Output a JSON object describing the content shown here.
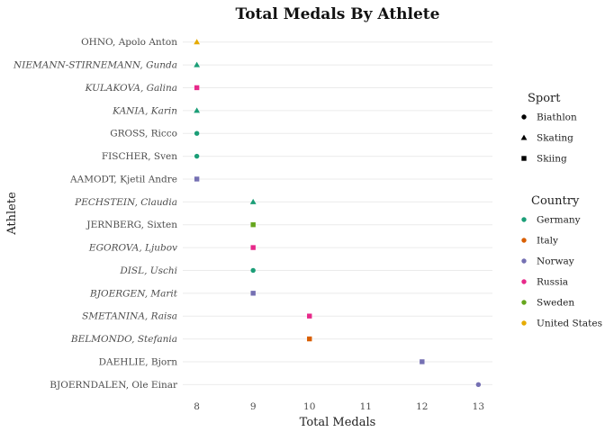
{
  "chart_data": {
    "type": "scatter",
    "title": "Total Medals By Athlete",
    "xlabel": "Total Medals",
    "ylabel": "Athlete",
    "xlim": [
      7.75,
      13.25
    ],
    "xticks": [
      8,
      9,
      10,
      11,
      12,
      13
    ],
    "grid": "horizontal",
    "legend_position": "right",
    "points": [
      {
        "athlete": "OHNO, Apolo Anton",
        "medals": 8,
        "sport": "Skating",
        "country": "United States",
        "italic": false
      },
      {
        "athlete": "NIEMANN-STIRNEMANN, Gunda",
        "medals": 8,
        "sport": "Skating",
        "country": "Germany",
        "italic": true
      },
      {
        "athlete": "KULAKOVA, Galina",
        "medals": 8,
        "sport": "Skiing",
        "country": "Russia",
        "italic": true
      },
      {
        "athlete": "KANIA, Karin",
        "medals": 8,
        "sport": "Skating",
        "country": "Germany",
        "italic": true
      },
      {
        "athlete": "GROSS, Ricco",
        "medals": 8,
        "sport": "Biathlon",
        "country": "Germany",
        "italic": false
      },
      {
        "athlete": "FISCHER, Sven",
        "medals": 8,
        "sport": "Biathlon",
        "country": "Germany",
        "italic": false
      },
      {
        "athlete": "AAMODT, Kjetil Andre",
        "medals": 8,
        "sport": "Skiing",
        "country": "Norway",
        "italic": false
      },
      {
        "athlete": "PECHSTEIN, Claudia",
        "medals": 9,
        "sport": "Skating",
        "country": "Germany",
        "italic": true
      },
      {
        "athlete": "JERNBERG, Sixten",
        "medals": 9,
        "sport": "Skiing",
        "country": "Sweden",
        "italic": false
      },
      {
        "athlete": "EGOROVA, Ljubov",
        "medals": 9,
        "sport": "Skiing",
        "country": "Russia",
        "italic": true
      },
      {
        "athlete": "DISL, Uschi",
        "medals": 9,
        "sport": "Biathlon",
        "country": "Germany",
        "italic": true
      },
      {
        "athlete": "BJOERGEN, Marit",
        "medals": 9,
        "sport": "Skiing",
        "country": "Norway",
        "italic": true
      },
      {
        "athlete": "SMETANINA, Raisa",
        "medals": 10,
        "sport": "Skiing",
        "country": "Russia",
        "italic": true
      },
      {
        "athlete": "BELMONDO, Stefania",
        "medals": 10,
        "sport": "Skiing",
        "country": "Italy",
        "italic": true
      },
      {
        "athlete": "DAEHLIE, Bjorn",
        "medals": 12,
        "sport": "Skiing",
        "country": "Norway",
        "italic": false
      },
      {
        "athlete": "BJOERNDALEN, Ole Einar",
        "medals": 13,
        "sport": "Biathlon",
        "country": "Norway",
        "italic": false
      }
    ],
    "legends": {
      "sport": {
        "title": "Sport",
        "items": [
          {
            "label": "Biathlon",
            "shape": "circle"
          },
          {
            "label": "Skating",
            "shape": "triangle"
          },
          {
            "label": "Skiing",
            "shape": "square"
          }
        ]
      },
      "country": {
        "title": "Country",
        "items": [
          {
            "label": "Germany",
            "color": "#1b9e77"
          },
          {
            "label": "Italy",
            "color": "#d95f02"
          },
          {
            "label": "Norway",
            "color": "#7570b3"
          },
          {
            "label": "Russia",
            "color": "#e7298a"
          },
          {
            "label": "Sweden",
            "color": "#66a61e"
          },
          {
            "label": "United States",
            "color": "#e6ab02"
          }
        ]
      }
    }
  }
}
